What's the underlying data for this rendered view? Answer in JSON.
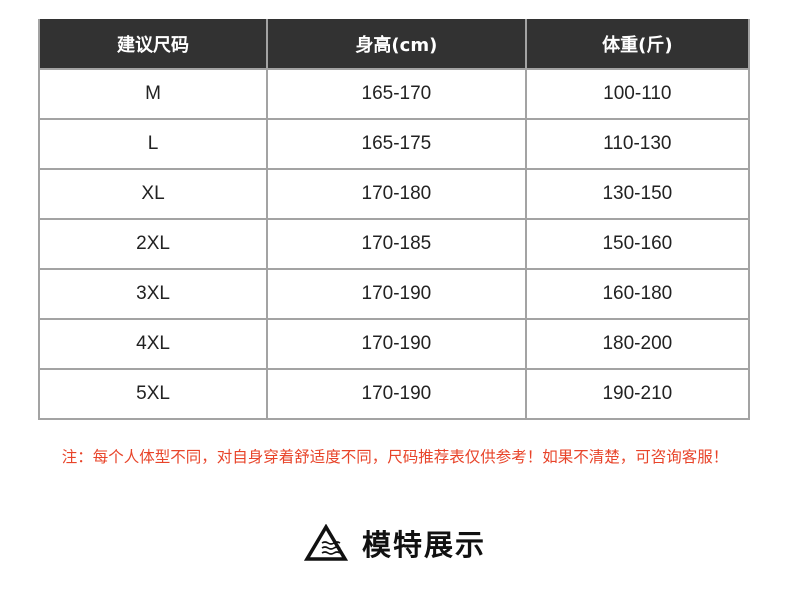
{
  "size_table": {
    "headers": [
      "建议尺码",
      "身高(cm)",
      "体重(斤)"
    ],
    "rows": [
      [
        "M",
        "165-170",
        "100-110"
      ],
      [
        "L",
        "165-175",
        "110-130"
      ],
      [
        "XL",
        "170-180",
        "130-150"
      ],
      [
        "2XL",
        "170-185",
        "150-160"
      ],
      [
        "3XL",
        "170-190",
        "160-180"
      ],
      [
        "4XL",
        "170-190",
        "180-200"
      ],
      [
        "5XL",
        "170-190",
        "190-210"
      ]
    ]
  },
  "note": "注：每个人体型不同，对自身穿着舒适度不同，尺码推荐表仅供参考！如果不清楚，可咨询客服！",
  "section_title": {
    "icon": "mountain-water-triangle-icon",
    "label": "模特展示"
  },
  "colors": {
    "header_bg": "#323232",
    "note": "#e8442a",
    "border": "#a3a3a3"
  }
}
